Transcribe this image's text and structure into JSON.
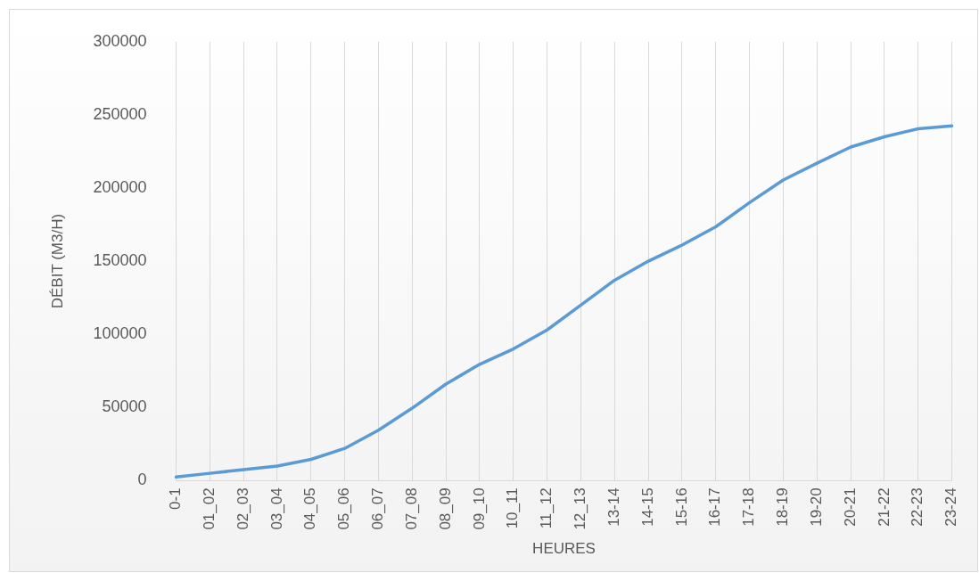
{
  "chart_data": {
    "type": "line",
    "xlabel": "HEURES",
    "ylabel": "DÉBIT (M3/H)",
    "categories": [
      "0-1",
      "01_02",
      "02_03",
      "03_04",
      "04_05",
      "05_06",
      "06_07",
      "07_08",
      "08_09",
      "09_10",
      "10_11",
      "11_12",
      "12_13",
      "13-14",
      "14-15",
      "15-16",
      "16-17",
      "17-18",
      "18-19",
      "19-20",
      "20-21",
      "21-22",
      "22-23",
      "23-24"
    ],
    "series": [
      {
        "color": "#5b9bd5",
        "values": [
          2500,
          5000,
          7500,
          10000,
          14500,
          22000,
          34500,
          49500,
          66000,
          79500,
          90000,
          103000,
          120000,
          137000,
          150000,
          161000,
          173500,
          190000,
          205500,
          217000,
          228000,
          235000,
          240500,
          242500
        ]
      }
    ],
    "ylim": [
      0,
      300000
    ],
    "yticks": [
      0,
      50000,
      100000,
      150000,
      200000,
      250000,
      300000
    ],
    "grid": "x",
    "legend": false,
    "marker": "none",
    "line_style": "solid"
  }
}
